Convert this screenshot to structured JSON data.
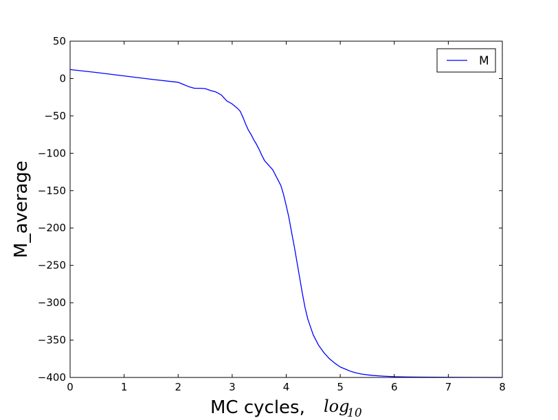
{
  "chart_data": {
    "type": "line",
    "xlabel": "MC cycles,",
    "xlabel_math": {
      "base": "log",
      "subscript": "10"
    },
    "ylabel": "M_average",
    "xlim": [
      0,
      8
    ],
    "ylim": [
      -400,
      50
    ],
    "x_ticks": [
      0,
      1,
      2,
      3,
      4,
      5,
      6,
      7,
      8
    ],
    "y_ticks": [
      50,
      0,
      -50,
      -100,
      -150,
      -200,
      -250,
      -300,
      -350,
      -400
    ],
    "x_tick_labels": [
      "0",
      "1",
      "2",
      "3",
      "4",
      "5",
      "6",
      "7",
      "8"
    ],
    "y_tick_labels": [
      "50",
      "0",
      "−50",
      "−100",
      "−150",
      "−200",
      "−250",
      "−300",
      "−350",
      "−400"
    ],
    "grid": false,
    "legend_position": "top-right",
    "series": [
      {
        "name": "M",
        "color": "#0000ff",
        "x": [
          0,
          0.5,
          1,
          1.5,
          2,
          2.1,
          2.2,
          2.3,
          2.4,
          2.5,
          2.6,
          2.7,
          2.8,
          2.85,
          2.9,
          3.0,
          3.05,
          3.1,
          3.15,
          3.2,
          3.25,
          3.3,
          3.35,
          3.4,
          3.45,
          3.5,
          3.55,
          3.6,
          3.65,
          3.7,
          3.75,
          3.8,
          3.85,
          3.9,
          3.95,
          4.0,
          4.05,
          4.1,
          4.15,
          4.2,
          4.25,
          4.3,
          4.35,
          4.4,
          4.5,
          4.6,
          4.7,
          4.8,
          4.9,
          5.0,
          5.1,
          5.2,
          5.3,
          5.4,
          5.5,
          5.6,
          5.8,
          6.0,
          6.2,
          6.5,
          7.0,
          7.5,
          8.0
        ],
        "y": [
          12,
          8,
          3.5,
          -1,
          -5,
          -8,
          -11,
          -13,
          -13,
          -13.5,
          -16,
          -18,
          -22,
          -26,
          -30,
          -34,
          -37,
          -40,
          -44,
          -52,
          -61,
          -69,
          -75,
          -82,
          -88,
          -95,
          -103,
          -110,
          -114,
          -118,
          -122,
          -129,
          -136,
          -143,
          -155,
          -170,
          -186,
          -206,
          -225,
          -246,
          -267,
          -288,
          -307,
          -322,
          -343,
          -357,
          -367,
          -375,
          -381,
          -386,
          -389,
          -392,
          -394,
          -395.5,
          -396.5,
          -397.3,
          -398.3,
          -399,
          -399.3,
          -399.6,
          -399.8,
          -399.9,
          -400
        ]
      }
    ]
  }
}
